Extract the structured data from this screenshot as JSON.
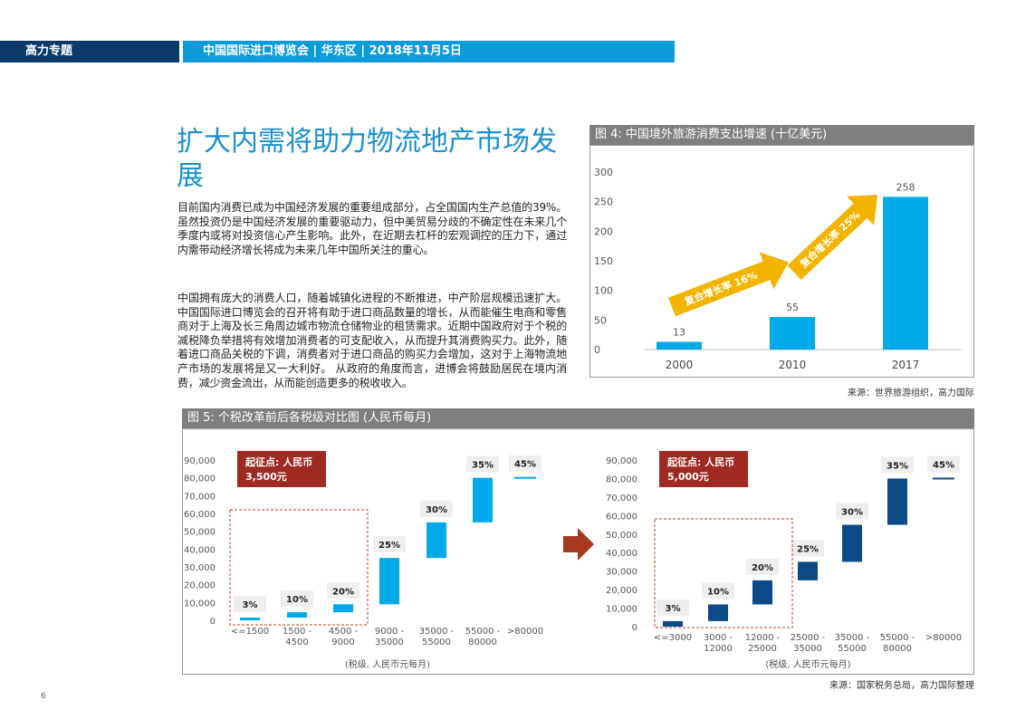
{
  "header": {
    "section": "高力专题",
    "event": "中国国际进口博览会 | 华东区 | 2018年11月5日"
  },
  "title": "扩大内需将助力物流地产市场发展",
  "paragraphs": [
    "目前国内消费已成为中国经济发展的重要组成部分，占全国国内生产总值的39%。虽然投资仍是中国经济发展的重要驱动力，但中美贸易分歧的不确定性在未来几个季度内或将对投资信心产生影响。此外，在近期去杠杆的宏观调控的压力下，通过内需带动经济增长将成为未来几年中国所关注的重心。",
    "中国拥有庞大的消费人口，随着城镇化进程的不断推进，中产阶层规模迅速扩大。中国国际进口博览会的召开将有助于进口商品数量的增长，从而能催生电商和零售商对于上海及长三角周边城市物流仓储物业的租赁需求。近期中国政府对于个税的减税降负举措将有效增加消费者的可支配收入，从而提升其消费购买力。此外，随着进口商品关税的下调，消费者对于进口商品的购买力会增加，这对于上海物流地产市场的发展将是又一大利好。 从政府的角度而言，进博会将鼓励居民在境内消费，减少资金流出，从而能创造更多的税收收入。"
  ],
  "page_number": "6",
  "colors": {
    "navy": "#0b3a6a",
    "cyan": "#0a9bd8",
    "bar_light": "#00a9e8",
    "bar_dark": "#0b4a86",
    "arrow": "#f2b400",
    "callout": "#9e2a22"
  },
  "chart_data": [
    {
      "type": "bar",
      "title": "图 4:  中国境外旅游消费支出增速 (十亿美元)",
      "source": "来源：世界旅游组织，高力国际",
      "categories": [
        "2000",
        "2010",
        "2017"
      ],
      "values": [
        13,
        55,
        258
      ],
      "value_labels": [
        "13",
        "55",
        "258"
      ],
      "ylim": [
        0,
        300
      ],
      "yticks": [
        "0",
        "50",
        "100",
        "150",
        "200",
        "250",
        "300"
      ],
      "annotations": [
        "复合增长率 16%",
        "复合增长率 25%"
      ],
      "grid": false
    },
    {
      "type": "bar",
      "title": "图 5:  个税改革前后各税级对比图 (人民币每月)",
      "source": "来源：国家税务总局，高力国际整理",
      "panels": [
        {
          "callout": [
            "起征点: 人民币",
            "3,500元"
          ],
          "yticks": [
            "0",
            "10,000",
            "20,000",
            "30,000",
            "40,000",
            "50,000",
            "60,000",
            "70,000",
            "80,000",
            "90,000"
          ],
          "ylim": [
            0,
            90000
          ],
          "brackets": [
            {
              "label": [
                "<=1500"
              ],
              "low": 0,
              "high": 1500,
              "rate": "3%"
            },
            {
              "label": [
                "1500 -",
                "4500"
              ],
              "low": 1500,
              "high": 4500,
              "rate": "10%"
            },
            {
              "label": [
                "4500 -",
                "9000"
              ],
              "low": 4500,
              "high": 9000,
              "rate": "20%"
            },
            {
              "label": [
                "9000 -",
                "35000"
              ],
              "low": 9000,
              "high": 35000,
              "rate": "25%"
            },
            {
              "label": [
                "35000 -",
                "55000"
              ],
              "low": 35000,
              "high": 55000,
              "rate": "30%"
            },
            {
              "label": [
                "55000 -",
                "80000"
              ],
              "low": 55000,
              "high": 80000,
              "rate": "35%"
            },
            {
              "label": [
                ">80000"
              ],
              "low": 80000,
              "high": 80000,
              "rate": "45%"
            }
          ],
          "xlabel": "(税级, 人民币元每月)"
        },
        {
          "callout": [
            "起征点: 人民币",
            "5,000元"
          ],
          "yticks": [
            "0",
            "10,000",
            "20,000",
            "30,000",
            "40,000",
            "50,000",
            "60,000",
            "70,000",
            "80,000",
            "90,000"
          ],
          "ylim": [
            0,
            90000
          ],
          "brackets": [
            {
              "label": [
                "<=3000"
              ],
              "low": 0,
              "high": 3000,
              "rate": "3%"
            },
            {
              "label": [
                "3000 -",
                "12000"
              ],
              "low": 3000,
              "high": 12000,
              "rate": "10%"
            },
            {
              "label": [
                "12000 -",
                "25000"
              ],
              "low": 12000,
              "high": 25000,
              "rate": "20%"
            },
            {
              "label": [
                "25000 -",
                "35000"
              ],
              "low": 25000,
              "high": 35000,
              "rate": "25%"
            },
            {
              "label": [
                "35000 -",
                "55000"
              ],
              "low": 35000,
              "high": 55000,
              "rate": "30%"
            },
            {
              "label": [
                "55000 -",
                "80000"
              ],
              "low": 55000,
              "high": 80000,
              "rate": "35%"
            },
            {
              "label": [
                ">80000"
              ],
              "low": 80000,
              "high": 80000,
              "rate": "45%"
            }
          ],
          "xlabel": "(税级, 人民币元每月)"
        }
      ]
    }
  ]
}
